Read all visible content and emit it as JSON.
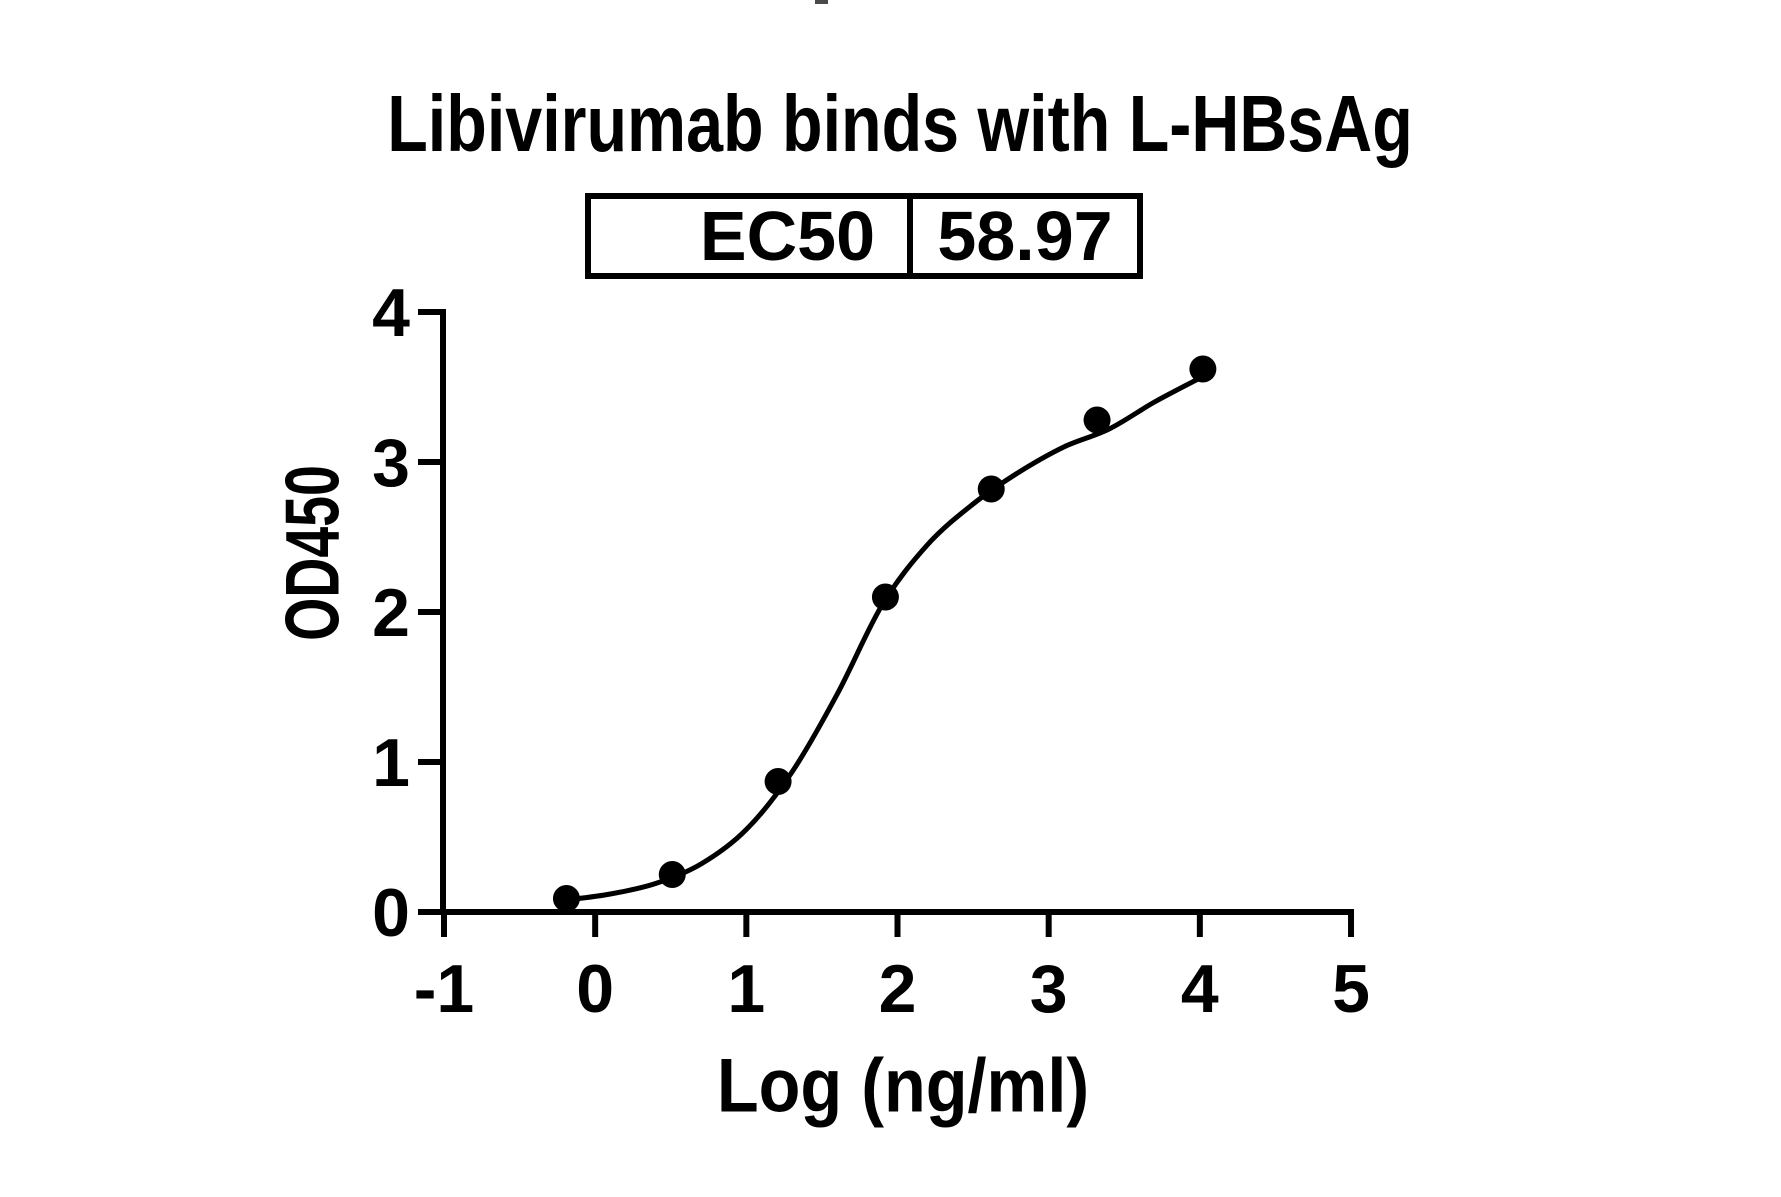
{
  "title": "Libivirumab binds with L-HBsAg",
  "ec50_table": {
    "label": "EC50",
    "value": "58.97"
  },
  "chart_data": {
    "type": "scatter",
    "title": "Libivirumab binds with L-HBsAg",
    "xlabel": "Log (ng/ml)",
    "ylabel": "OD450",
    "xlim": [
      -1,
      5
    ],
    "ylim": [
      0,
      4
    ],
    "x_ticks": [
      -1,
      0,
      1,
      2,
      3,
      4,
      5
    ],
    "y_ticks": [
      0,
      1,
      2,
      3,
      4
    ],
    "grid": false,
    "legend": "none",
    "marker_color": "#000000",
    "line_color": "#000000",
    "background_color": "#ffffff",
    "ec50": 58.97,
    "points": {
      "x": [
        -0.19,
        0.51,
        1.21,
        1.92,
        2.62,
        3.32,
        4.02
      ],
      "y": [
        0.09,
        0.25,
        0.87,
        2.1,
        2.82,
        3.28,
        3.62
      ]
    },
    "curve": {
      "x": [
        -0.19,
        0.1,
        0.4,
        0.7,
        1.0,
        1.3,
        1.6,
        1.9,
        2.2,
        2.5,
        2.8,
        3.1,
        3.4,
        3.7,
        4.02
      ],
      "y": [
        0.08,
        0.12,
        0.19,
        0.32,
        0.55,
        0.93,
        1.45,
        2.05,
        2.45,
        2.72,
        2.93,
        3.1,
        3.22,
        3.4,
        3.57
      ]
    }
  }
}
